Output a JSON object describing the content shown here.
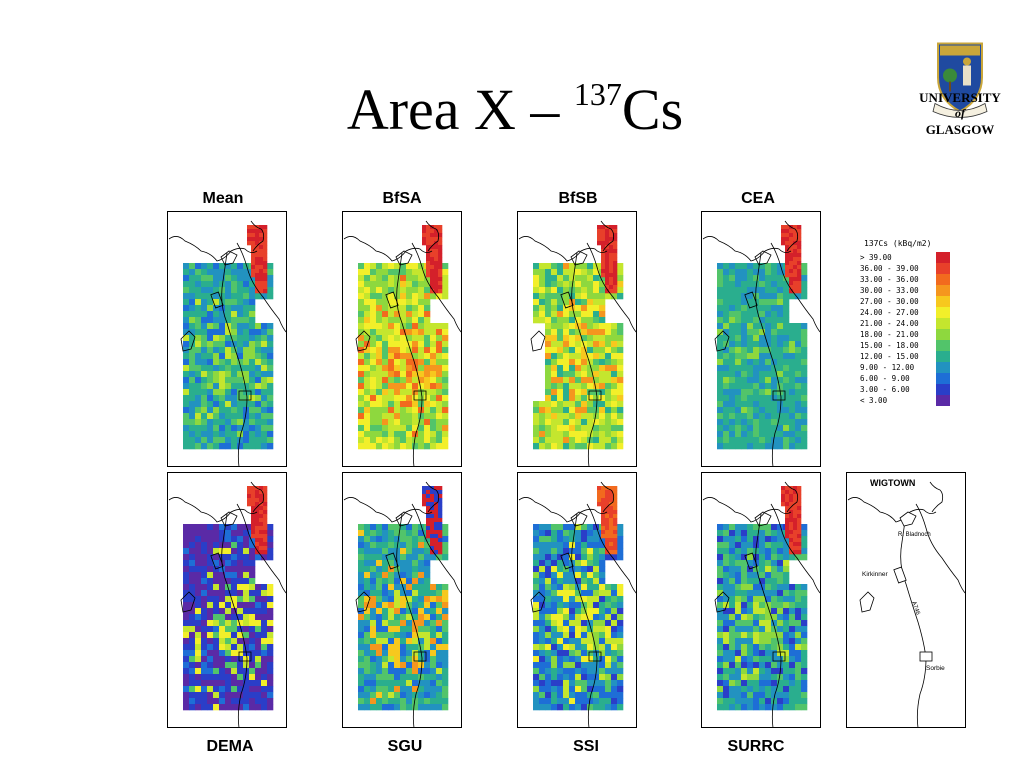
{
  "title": {
    "main": "Area X – ",
    "superscript": "137",
    "element": "Cs"
  },
  "logo": {
    "line1": "UNIVERSITY",
    "line2": "of",
    "line3": "GLASGOW"
  },
  "maps": [
    {
      "label": "Mean",
      "palette": "mean"
    },
    {
      "label": "BfSA",
      "palette": "bfsa"
    },
    {
      "label": "BfSB",
      "palette": "bfsb"
    },
    {
      "label": "CEA",
      "palette": "cea"
    },
    {
      "label": "DEMA",
      "palette": "dema"
    },
    {
      "label": "SGU",
      "palette": "sgu"
    },
    {
      "label": "SSI",
      "palette": "ssi"
    },
    {
      "label": "SURRC",
      "palette": "surrc"
    }
  ],
  "legend": {
    "title": "137Cs (kBq/m2)",
    "entries": [
      {
        "label": ">  39.00",
        "color": "#d4202a"
      },
      {
        "label": "36.00 - 39.00",
        "color": "#e8402a"
      },
      {
        "label": "33.00 - 36.00",
        "color": "#f26a1e"
      },
      {
        "label": "30.00 - 33.00",
        "color": "#f5961e"
      },
      {
        "label": "27.00 - 30.00",
        "color": "#f7c81e"
      },
      {
        "label": "24.00 - 27.00",
        "color": "#f2ef2a"
      },
      {
        "label": "21.00 - 24.00",
        "color": "#c4e62e"
      },
      {
        "label": "18.00 - 21.00",
        "color": "#8ed83e"
      },
      {
        "label": "15.00 - 18.00",
        "color": "#52c46a"
      },
      {
        "label": "12.00 - 15.00",
        "color": "#2aae8e"
      },
      {
        "label": "9.00 - 12.00",
        "color": "#2292c0"
      },
      {
        "label": "6.00 -  9.00",
        "color": "#1e6ed6"
      },
      {
        "label": "3.00 -  6.00",
        "color": "#2a3ec8"
      },
      {
        "label": "<  3.00",
        "color": "#5a2aa6"
      }
    ]
  },
  "reference_map": {
    "town": "WIGTOWN",
    "river": "R. Bladnoch",
    "village1": "Kirkinner",
    "road": "A746",
    "village2": "Sorbie"
  }
}
